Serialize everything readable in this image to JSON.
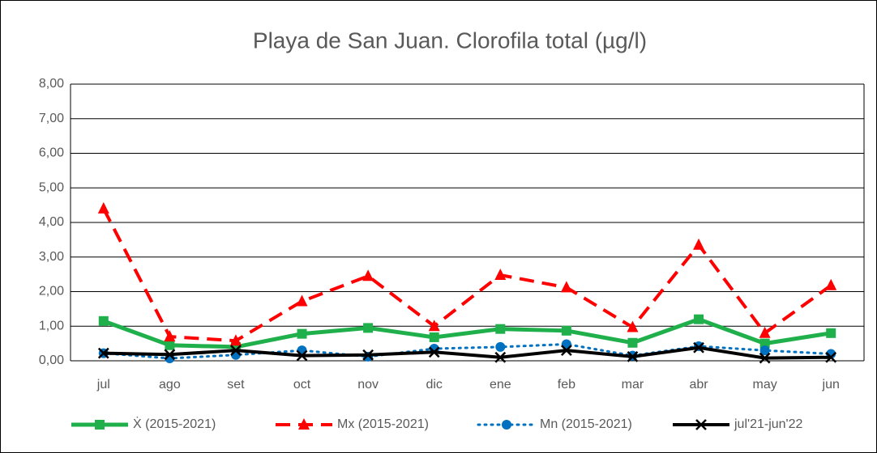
{
  "chart_data": {
    "type": "line",
    "title": "Playa de San Juan. Clorofila total (µg/l)",
    "categories": [
      "jul",
      "ago",
      "set",
      "oct",
      "nov",
      "dic",
      "ene",
      "feb",
      "mar",
      "abr",
      "may",
      "jun"
    ],
    "series": [
      {
        "name": "Ẋ (2015-2021)",
        "color": "#1fb04c",
        "marker": "square",
        "dash": "solid",
        "width": 5,
        "values": [
          1.15,
          0.45,
          0.4,
          0.78,
          0.95,
          0.68,
          0.92,
          0.87,
          0.52,
          1.2,
          0.5,
          0.8
        ]
      },
      {
        "name": "Mx (2015-2021)",
        "color": "#ff0000",
        "marker": "triangle",
        "dash": "dashed",
        "width": 4,
        "values": [
          4.4,
          0.7,
          0.58,
          1.72,
          2.45,
          1.0,
          2.48,
          2.12,
          0.97,
          3.35,
          0.8,
          2.18
        ]
      },
      {
        "name": "Mn (2015-2021)",
        "color": "#0070c0",
        "marker": "circle",
        "dash": "dotted",
        "width": 3,
        "values": [
          0.22,
          0.07,
          0.17,
          0.3,
          0.12,
          0.35,
          0.4,
          0.48,
          0.15,
          0.42,
          0.3,
          0.2
        ]
      },
      {
        "name": "jul'21-jun'22",
        "color": "#000000",
        "marker": "x",
        "dash": "solid",
        "width": 4,
        "values": [
          0.22,
          0.18,
          0.3,
          0.15,
          0.17,
          0.25,
          0.1,
          0.3,
          0.12,
          0.38,
          0.08,
          0.1
        ]
      }
    ],
    "ylim": [
      0,
      8
    ],
    "yticks": [
      {
        "value": 0,
        "label": "0,00"
      },
      {
        "value": 1,
        "label": "1,00"
      },
      {
        "value": 2,
        "label": "2,00"
      },
      {
        "value": 3,
        "label": "3,00"
      },
      {
        "value": 4,
        "label": "4,00"
      },
      {
        "value": 5,
        "label": "5,00"
      },
      {
        "value": 6,
        "label": "6,00"
      },
      {
        "value": 7,
        "label": "7,00"
      },
      {
        "value": 8,
        "label": "8,00"
      }
    ],
    "grid": true,
    "legend": "bottom"
  }
}
